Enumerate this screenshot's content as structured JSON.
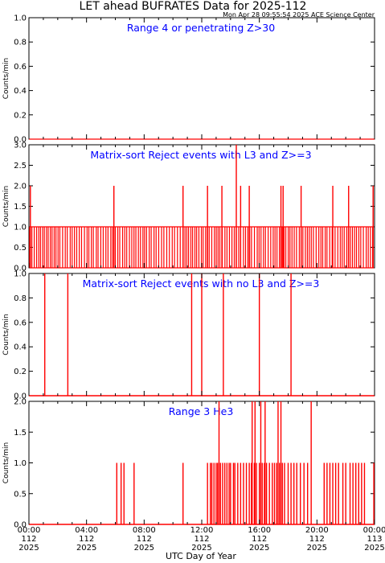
{
  "header": {
    "title": "LET ahead BUFRATES Data for 2025-112",
    "timestamp": "Mon Apr 28 09:55:54 2025 ACE Science Center"
  },
  "colors": {
    "series": "#ff0000",
    "panel_title": "#0000ff",
    "axis": "#000000"
  },
  "x_axis": {
    "label": "UTC Day of Year",
    "ticks": [
      {
        "time": "00:00",
        "doy": "112",
        "year": "2025"
      },
      {
        "time": "04:00",
        "doy": "112",
        "year": "2025"
      },
      {
        "time": "08:00",
        "doy": "112",
        "year": "2025"
      },
      {
        "time": "12:00",
        "doy": "112",
        "year": "2025"
      },
      {
        "time": "16:00",
        "doy": "112",
        "year": "2025"
      },
      {
        "time": "20:00",
        "doy": "112",
        "year": "2025"
      },
      {
        "time": "00:00",
        "doy": "113",
        "year": "2025"
      }
    ]
  },
  "chart_data": [
    {
      "type": "line",
      "title": "Range 4 or  penetrating Z>30",
      "ylabel": "Counts/min",
      "ylim": [
        0,
        1.0
      ],
      "yticks": [
        "0.0",
        "0.2",
        "0.4",
        "0.6",
        "0.8",
        "1.0"
      ],
      "xlim_hours": [
        0,
        24
      ],
      "series": [
        {
          "x": [
            0,
            24
          ],
          "values": [
            0,
            0
          ]
        }
      ]
    },
    {
      "type": "line",
      "title": "Matrix-sort Reject events with L3 and Z>=3",
      "ylabel": "Counts/min",
      "ylim": [
        0,
        3.0
      ],
      "yticks": [
        "0.0",
        "0.5",
        "1.0",
        "1.5",
        "2.0",
        "2.5",
        "3.0"
      ],
      "xlim_hours": [
        0,
        24
      ],
      "spike_series": {
        "baseline_ones_ranges_hours": [
          [
            0.05,
            23.95
          ]
        ],
        "twos_hours": [
          0.1,
          5.9,
          10.7,
          12.4,
          13.4,
          14.7,
          15.3,
          17.5,
          17.65,
          18.9,
          21.1,
          22.2,
          23.9
        ],
        "threes_hours": [
          14.4
        ]
      }
    },
    {
      "type": "line",
      "title": "Matrix-sort Reject events with no L3 and Z>=3",
      "ylabel": "Counts/min",
      "ylim": [
        0,
        1.0
      ],
      "yticks": [
        "0.0",
        "0.2",
        "0.4",
        "0.6",
        "0.8",
        "1.0"
      ],
      "xlim_hours": [
        0,
        24
      ],
      "spike_series": {
        "ones_hours": [
          1.1,
          2.7,
          11.3,
          12.0,
          13.5,
          16.0,
          18.2
        ]
      }
    },
    {
      "type": "line",
      "title": "Range 3 He3",
      "ylabel": "Counts/min",
      "ylim": [
        0,
        2.0
      ],
      "yticks": [
        "0.0",
        "0.5",
        "1.0",
        "1.5",
        "2.0"
      ],
      "xlim_hours": [
        0,
        24
      ],
      "spike_series": {
        "ones_hours": [
          6.1,
          6.4,
          6.6,
          7.3,
          10.7,
          12.4,
          12.6,
          12.7,
          12.85,
          13.0,
          13.1,
          13.3,
          13.45,
          13.6,
          13.75,
          13.9,
          14.0,
          14.2,
          14.3,
          14.5,
          14.7,
          14.9,
          15.1,
          15.3,
          15.45,
          15.65,
          15.8,
          16.0,
          16.2,
          16.35,
          16.5,
          16.7,
          16.9,
          17.05,
          17.2,
          17.4,
          17.6,
          17.75,
          18.0,
          18.2,
          18.4,
          18.6,
          18.85,
          19.1,
          19.35,
          20.5,
          20.7,
          20.9,
          21.1,
          21.3,
          21.5,
          21.8,
          22.0,
          22.3,
          22.5,
          22.7,
          22.9,
          23.1,
          23.3,
          23.95
        ],
        "twos_hours": [
          13.2,
          15.5,
          15.7,
          16.1,
          16.4,
          17.3,
          17.5,
          19.6
        ]
      }
    }
  ]
}
